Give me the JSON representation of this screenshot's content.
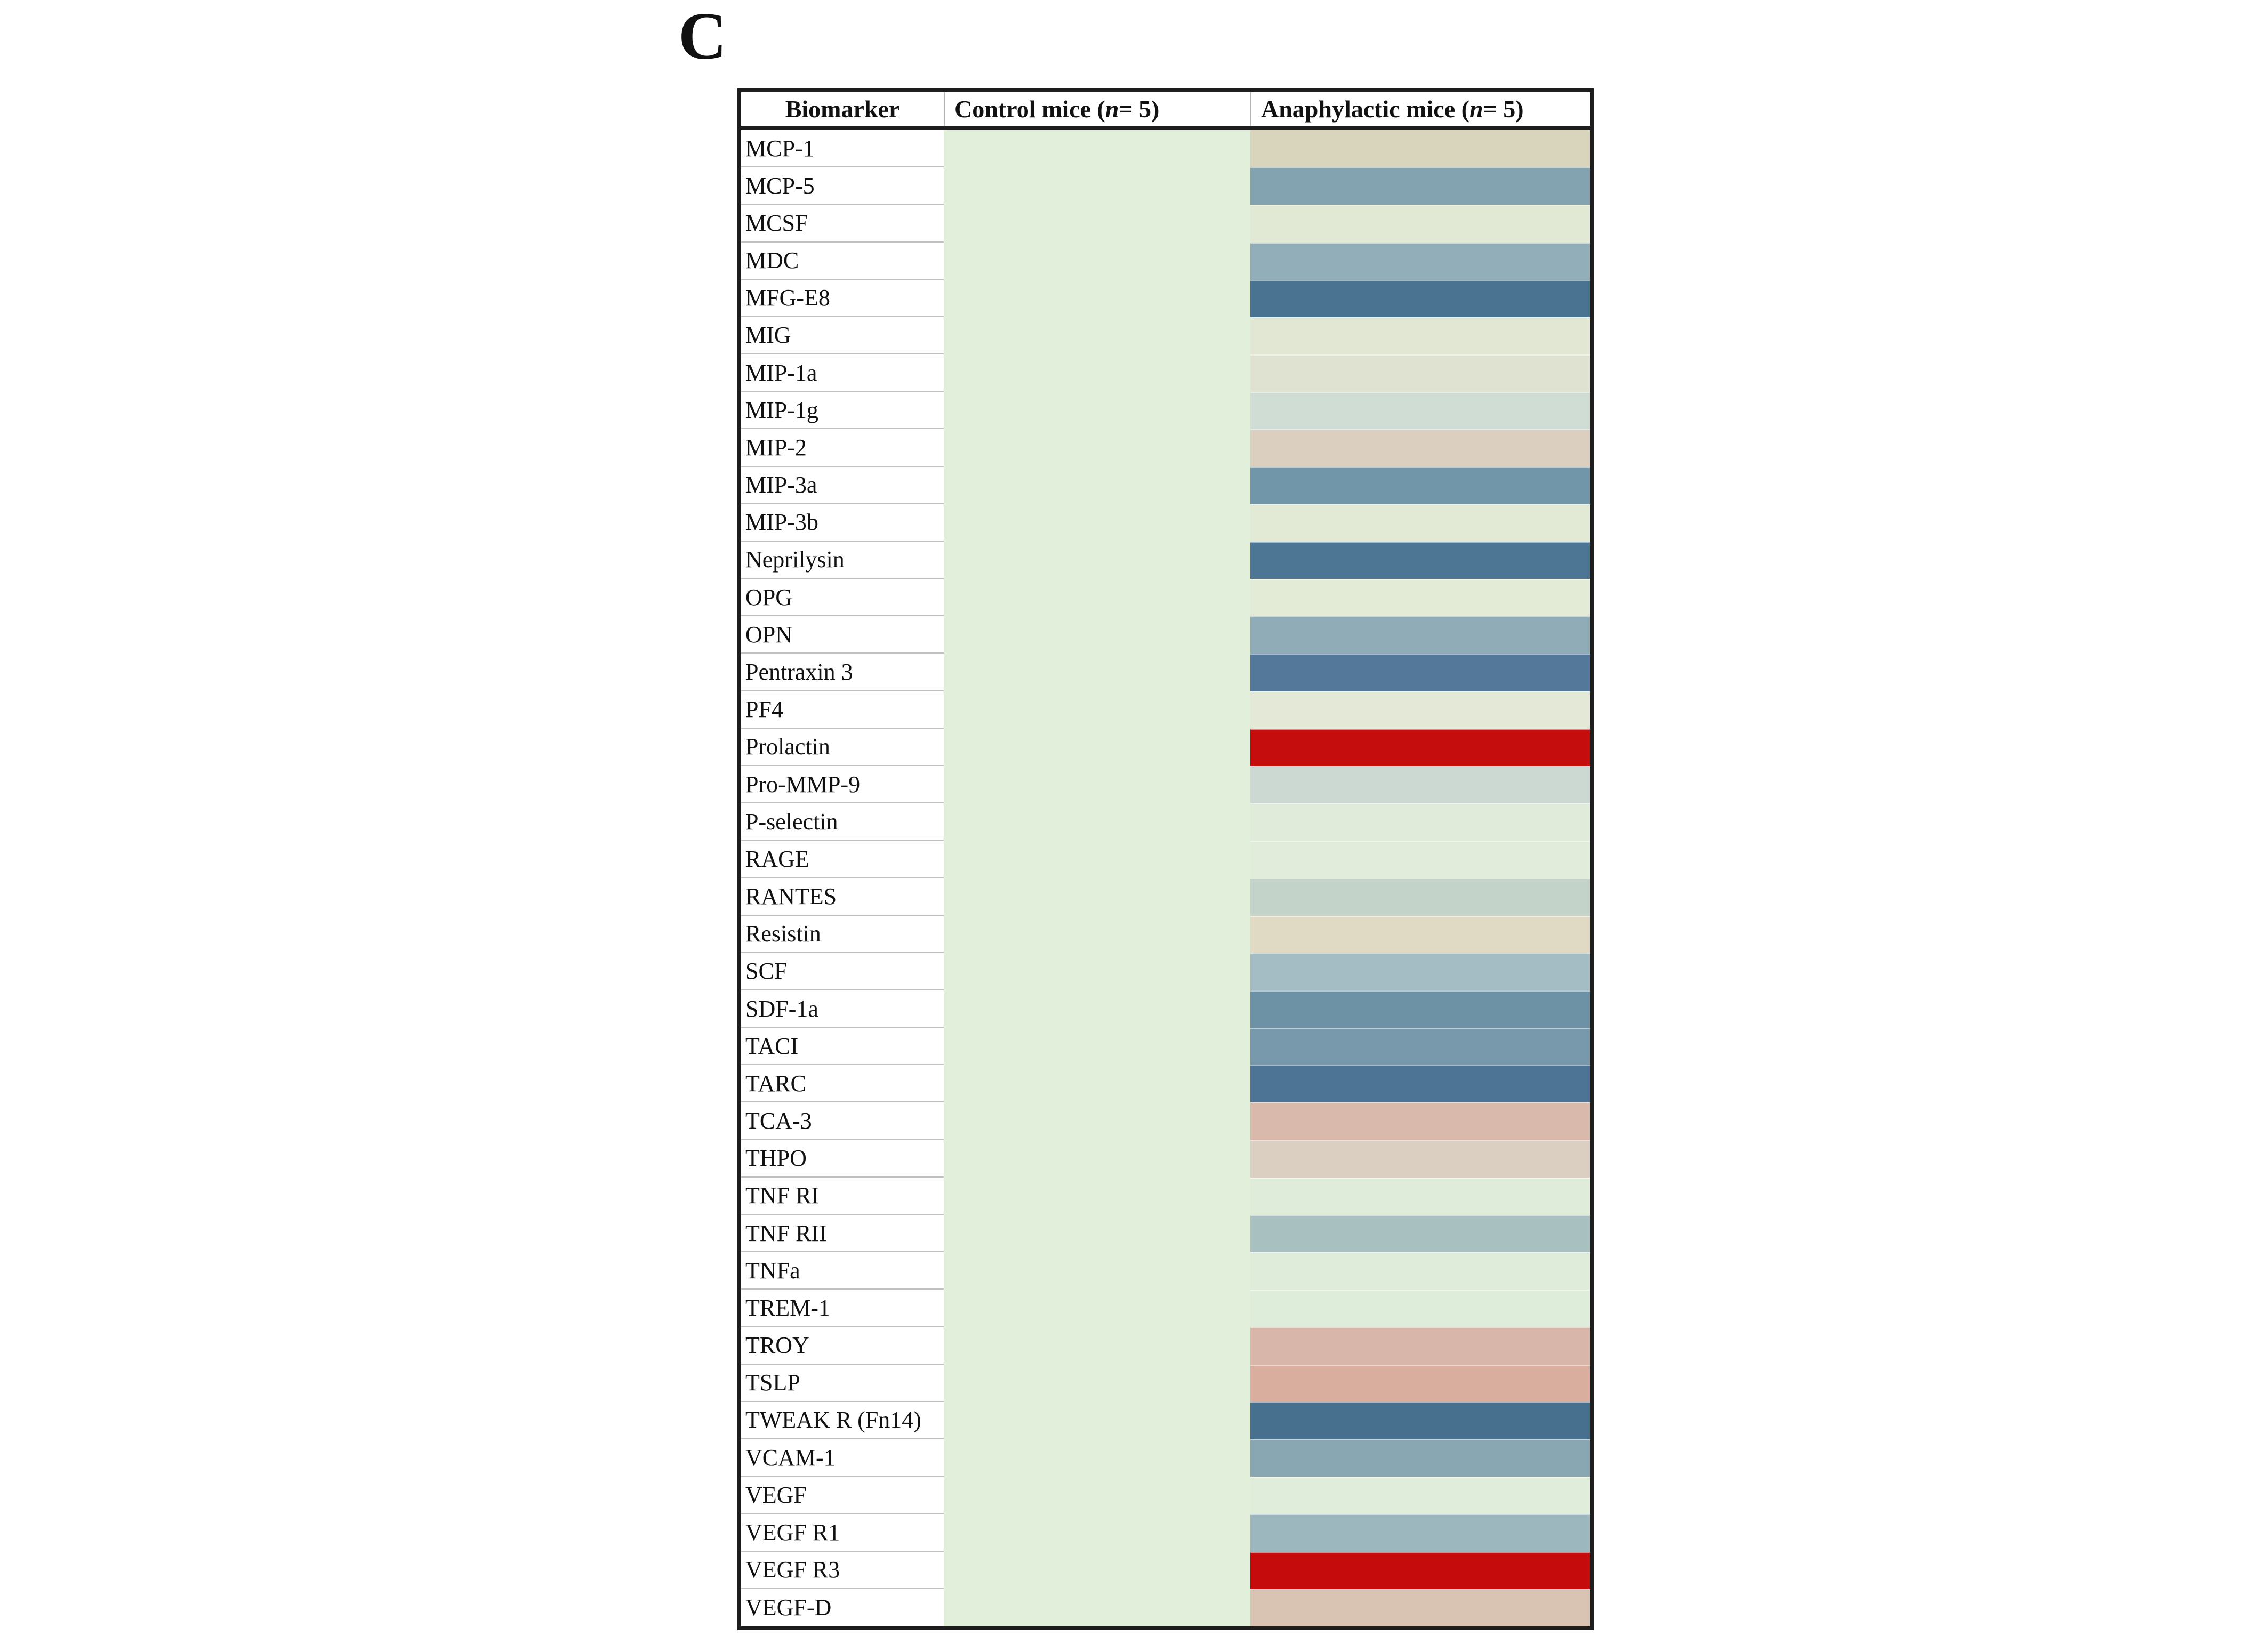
{
  "panel_label": "C",
  "chart_data": {
    "type": "heatmap",
    "title": "C",
    "columns": [
      "Biomarker",
      "Control mice (n = 5)",
      "Anaphylactic mice (n = 5)"
    ],
    "legend": "none shown; values encoded as cell fill color",
    "control_fill": "#e2efda",
    "highlight_red": "#c50d0d",
    "rows": [
      {
        "biomarker": "MCP-1",
        "anaphylactic_fill": "#d9d4bc"
      },
      {
        "biomarker": "MCP-5",
        "anaphylactic_fill": "#84a3b0"
      },
      {
        "biomarker": "MCSF",
        "anaphylactic_fill": "#e1e8d3"
      },
      {
        "biomarker": "MDC",
        "anaphylactic_fill": "#92aeb8"
      },
      {
        "biomarker": "MFG-E8",
        "anaphylactic_fill": "#4a7392"
      },
      {
        "biomarker": "MIG",
        "anaphylactic_fill": "#e1e7d2"
      },
      {
        "biomarker": "MIP-1a",
        "anaphylactic_fill": "#dfe1d1"
      },
      {
        "biomarker": "MIP-1g",
        "anaphylactic_fill": "#d0ddd5"
      },
      {
        "biomarker": "MIP-2",
        "anaphylactic_fill": "#dbd0bf"
      },
      {
        "biomarker": "MIP-3a",
        "anaphylactic_fill": "#7195a9"
      },
      {
        "biomarker": "MIP-3b",
        "anaphylactic_fill": "#e2e9d5"
      },
      {
        "biomarker": "Neprilysin",
        "anaphylactic_fill": "#4d7695"
      },
      {
        "biomarker": "OPG",
        "anaphylactic_fill": "#e3ebd7"
      },
      {
        "biomarker": "OPN",
        "anaphylactic_fill": "#90acb7"
      },
      {
        "biomarker": "Pentraxin 3",
        "anaphylactic_fill": "#54789a"
      },
      {
        "biomarker": "PF4",
        "anaphylactic_fill": "#e3e9d6"
      },
      {
        "biomarker": "Prolactin",
        "anaphylactic_fill": "#c50d0d"
      },
      {
        "biomarker": "Pro-MMP-9",
        "anaphylactic_fill": "#ccd9d2"
      },
      {
        "biomarker": "P-selectin",
        "anaphylactic_fill": "#e0ebda"
      },
      {
        "biomarker": "RAGE",
        "anaphylactic_fill": "#e1ecdb"
      },
      {
        "biomarker": "RANTES",
        "anaphylactic_fill": "#c3d3ca"
      },
      {
        "biomarker": "Resistin",
        "anaphylactic_fill": "#e0dac4"
      },
      {
        "biomarker": "SCF",
        "anaphylactic_fill": "#a4bdc5"
      },
      {
        "biomarker": "SDF-1a",
        "anaphylactic_fill": "#6d92a6"
      },
      {
        "biomarker": "TACI",
        "anaphylactic_fill": "#7899ab"
      },
      {
        "biomarker": "TARC",
        "anaphylactic_fill": "#4d7495"
      },
      {
        "biomarker": "TCA-3",
        "anaphylactic_fill": "#d9b9ac"
      },
      {
        "biomarker": "THPO",
        "anaphylactic_fill": "#dbcfc2"
      },
      {
        "biomarker": "TNF RI",
        "anaphylactic_fill": "#dfecda"
      },
      {
        "biomarker": "TNF RII",
        "anaphylactic_fill": "#a9c0c1"
      },
      {
        "biomarker": "TNFa",
        "anaphylactic_fill": "#dfecda"
      },
      {
        "biomarker": "TREM-1",
        "anaphylactic_fill": "#deecda"
      },
      {
        "biomarker": "TROY",
        "anaphylactic_fill": "#d8b6aa"
      },
      {
        "biomarker": "TSLP",
        "anaphylactic_fill": "#daae9e"
      },
      {
        "biomarker": "TWEAK R (Fn14)",
        "anaphylactic_fill": "#47708f"
      },
      {
        "biomarker": "VCAM-1",
        "anaphylactic_fill": "#89a7b2"
      },
      {
        "biomarker": "VEGF",
        "anaphylactic_fill": "#e1eddb"
      },
      {
        "biomarker": "VEGF R1",
        "anaphylactic_fill": "#9db7bf"
      },
      {
        "biomarker": "VEGF R3",
        "anaphylactic_fill": "#c50b0b"
      },
      {
        "biomarker": "VEGF-D",
        "anaphylactic_fill": "#d9c4b3"
      }
    ]
  }
}
